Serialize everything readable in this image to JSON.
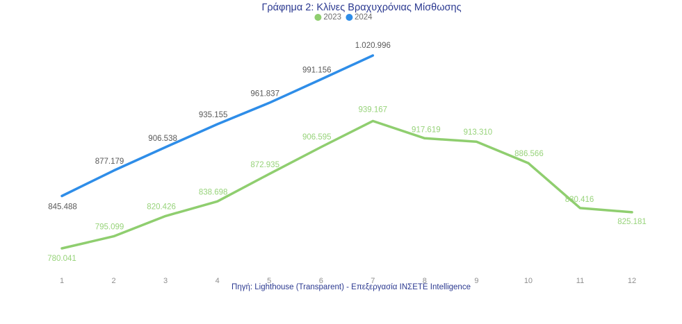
{
  "title": "Γράφημα 2: Κλίνες Βραχυχρόνιας Μίσθωσης",
  "source": "Πηγή: Lighthouse (Transparent) - Επεξεργασία ΙΝΣΕΤΕ Intelligence",
  "colors": {
    "title": "#2B3990",
    "source": "#2B3990",
    "axis_labels": "#8E8E8E"
  },
  "chart_data": {
    "type": "line",
    "title": "Γράφημα 2: Κλίνες Βραχυχρόνιας Μίσθωσης",
    "xlabel": "",
    "ylabel": "",
    "categories": [
      "1",
      "2",
      "3",
      "4",
      "5",
      "6",
      "7",
      "8",
      "9",
      "10",
      "11",
      "12"
    ],
    "ylim": [
      760000,
      1040000
    ],
    "grid": false,
    "legend_position": "top",
    "series": [
      {
        "name": "2023",
        "color": "#8FCE6F",
        "label_color": "#97D37A",
        "values": [
          780041,
          795099,
          820426,
          838698,
          872935,
          906595,
          939167,
          917619,
          913310,
          886566,
          830416,
          825181
        ],
        "labels": [
          "780.041",
          "795.099",
          "820.426",
          "838.698",
          "872.935",
          "906.595",
          "939.167",
          "917.619",
          "913.310",
          "886.566",
          "830.416",
          "825.181"
        ]
      },
      {
        "name": "2024",
        "color": "#2E8DE8",
        "label_color": "#595959",
        "values": [
          845488,
          877179,
          906538,
          935155,
          961837,
          991156,
          1020996
        ],
        "labels": [
          "845.488",
          "877.179",
          "906.538",
          "935.155",
          "961.837",
          "991.156",
          "1.020.996"
        ]
      }
    ]
  }
}
